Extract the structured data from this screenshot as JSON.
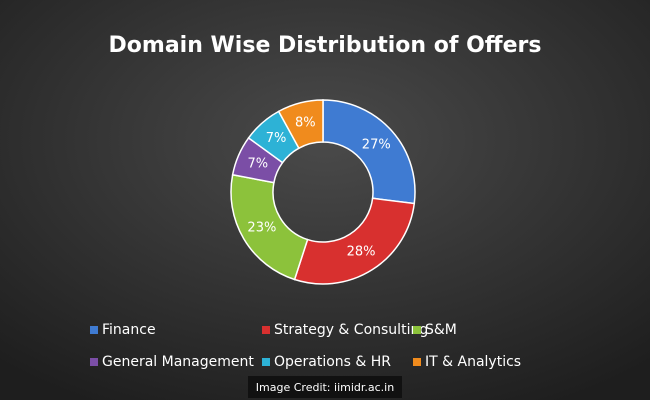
{
  "chart_data": {
    "type": "pie",
    "donut": true,
    "title": "Domain  Wise  Distribution  of  Offers",
    "categories": [
      "Finance",
      "Strategy & Consulting",
      "S&M",
      "General Management",
      "Operations & HR",
      "IT & Analytics"
    ],
    "values": [
      27,
      28,
      23,
      7,
      7,
      8
    ],
    "value_labels": [
      "27%",
      "28%",
      "23%",
      "7%",
      "7%",
      "8%"
    ],
    "colors": [
      "#3f7bd2",
      "#d8302f",
      "#8cc23b",
      "#7b4ea6",
      "#2db2d6",
      "#f08b1d"
    ],
    "legend": "bottom"
  },
  "credit": "Image Credit: iimidr.ac.in"
}
